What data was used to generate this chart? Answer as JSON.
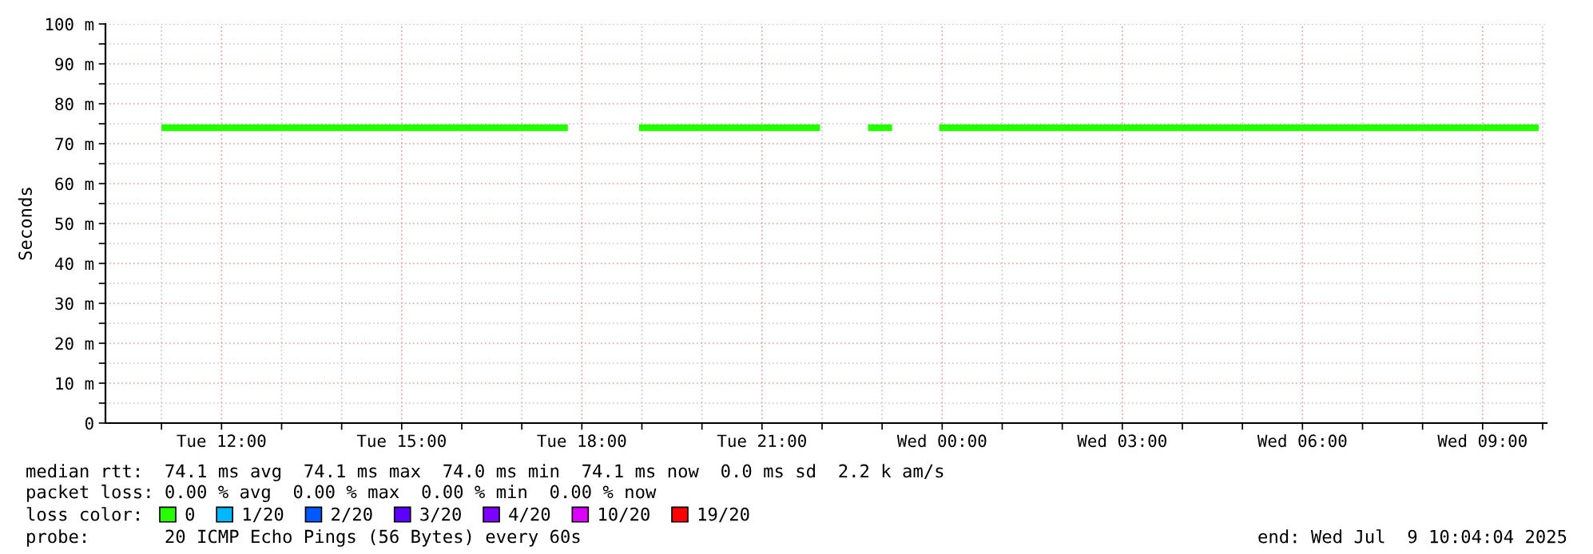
{
  "chart_data": {
    "type": "line",
    "ylabel": "Seconds",
    "ylim": [
      0,
      100
    ],
    "yticks": [
      {
        "value": 0,
        "label": "0"
      },
      {
        "value": 5,
        "label": null
      },
      {
        "value": 10,
        "label": "10 m"
      },
      {
        "value": 15,
        "label": null
      },
      {
        "value": 20,
        "label": "20 m"
      },
      {
        "value": 25,
        "label": null
      },
      {
        "value": 30,
        "label": "30 m"
      },
      {
        "value": 35,
        "label": null
      },
      {
        "value": 40,
        "label": "40 m"
      },
      {
        "value": 45,
        "label": null
      },
      {
        "value": 50,
        "label": "50 m"
      },
      {
        "value": 55,
        "label": null
      },
      {
        "value": 60,
        "label": "60 m"
      },
      {
        "value": 65,
        "label": null
      },
      {
        "value": 70,
        "label": "70 m"
      },
      {
        "value": 75,
        "label": null
      },
      {
        "value": 80,
        "label": "80 m"
      },
      {
        "value": 85,
        "label": null
      },
      {
        "value": 90,
        "label": "90 m"
      },
      {
        "value": 95,
        "label": null
      },
      {
        "value": 100,
        "label": "100 m"
      }
    ],
    "xlim": [
      "2025-07-08T10:04",
      "2025-07-09T10:04"
    ],
    "xticks": [
      {
        "value": "2025-07-08T11:00",
        "label": null
      },
      {
        "value": "2025-07-08T12:00",
        "label": "Tue 12:00"
      },
      {
        "value": "2025-07-08T13:00",
        "label": null
      },
      {
        "value": "2025-07-08T14:00",
        "label": null
      },
      {
        "value": "2025-07-08T15:00",
        "label": "Tue 15:00"
      },
      {
        "value": "2025-07-08T16:00",
        "label": null
      },
      {
        "value": "2025-07-08T17:00",
        "label": null
      },
      {
        "value": "2025-07-08T18:00",
        "label": "Tue 18:00"
      },
      {
        "value": "2025-07-08T19:00",
        "label": null
      },
      {
        "value": "2025-07-08T20:00",
        "label": null
      },
      {
        "value": "2025-07-08T21:00",
        "label": "Tue 21:00"
      },
      {
        "value": "2025-07-08T22:00",
        "label": null
      },
      {
        "value": "2025-07-08T23:00",
        "label": null
      },
      {
        "value": "2025-07-09T00:00",
        "label": "Wed 00:00"
      },
      {
        "value": "2025-07-09T01:00",
        "label": null
      },
      {
        "value": "2025-07-09T02:00",
        "label": null
      },
      {
        "value": "2025-07-09T03:00",
        "label": "Wed 03:00"
      },
      {
        "value": "2025-07-09T04:00",
        "label": null
      },
      {
        "value": "2025-07-09T05:00",
        "label": null
      },
      {
        "value": "2025-07-09T06:00",
        "label": "Wed 06:00"
      },
      {
        "value": "2025-07-09T07:00",
        "label": null
      },
      {
        "value": "2025-07-09T08:00",
        "label": null
      },
      {
        "value": "2025-07-09T09:00",
        "label": "Wed 09:00"
      },
      {
        "value": "2025-07-09T10:00",
        "label": null
      }
    ],
    "grid": true,
    "legend": "bottom left",
    "legend_title": "loss color:",
    "x": [
      "2025-07-08T11:00",
      "2025-07-08T17:46",
      "2025-07-08T18:20",
      "2025-07-08T18:57",
      "2025-07-08T21:58",
      "2025-07-08T22:20",
      "2025-07-08T22:46",
      "2025-07-08T23:10",
      "2025-07-08T23:30",
      "2025-07-08T23:57",
      "2025-07-09T09:56"
    ],
    "series": [
      {
        "name": "0",
        "color": "#26ff00",
        "values": [
          74,
          74,
          null,
          74,
          74,
          null,
          74,
          74,
          null,
          74,
          74
        ]
      },
      {
        "name": "1/20",
        "color": "#00b8ff",
        "values": [
          null,
          null,
          null,
          null,
          null,
          null,
          null,
          null,
          null,
          null,
          null
        ]
      },
      {
        "name": "2/20",
        "color": "#0059ff",
        "values": [
          null,
          null,
          null,
          null,
          null,
          null,
          null,
          null,
          null,
          null,
          null
        ]
      },
      {
        "name": "3/20",
        "color": "#5e00ff",
        "values": [
          null,
          null,
          null,
          null,
          null,
          null,
          null,
          null,
          null,
          null,
          null
        ]
      },
      {
        "name": "4/20",
        "color": "#7e00ff",
        "values": [
          null,
          null,
          null,
          null,
          null,
          null,
          null,
          null,
          null,
          null,
          null
        ]
      },
      {
        "name": "10/20",
        "color": "#dd00ff",
        "values": [
          null,
          null,
          null,
          null,
          null,
          null,
          null,
          null,
          null,
          null,
          null
        ]
      },
      {
        "name": "19/20",
        "color": "#ff0000",
        "values": [
          null,
          null,
          null,
          null,
          null,
          null,
          null,
          null,
          null,
          null,
          null
        ]
      }
    ],
    "annotations": [
      "median rtt:  74.1 ms avg  74.1 ms max  74.0 ms min  74.1 ms now  0.0 ms sd  2.2 k am/s",
      "packet loss: 0.00 % avg  0.00 % max  0.00 % min  0.00 % now",
      "probe:       20 ICMP Echo Pings (56 Bytes) every 60s",
      "end: Wed Jul  9 10:04:04 2025"
    ]
  }
}
